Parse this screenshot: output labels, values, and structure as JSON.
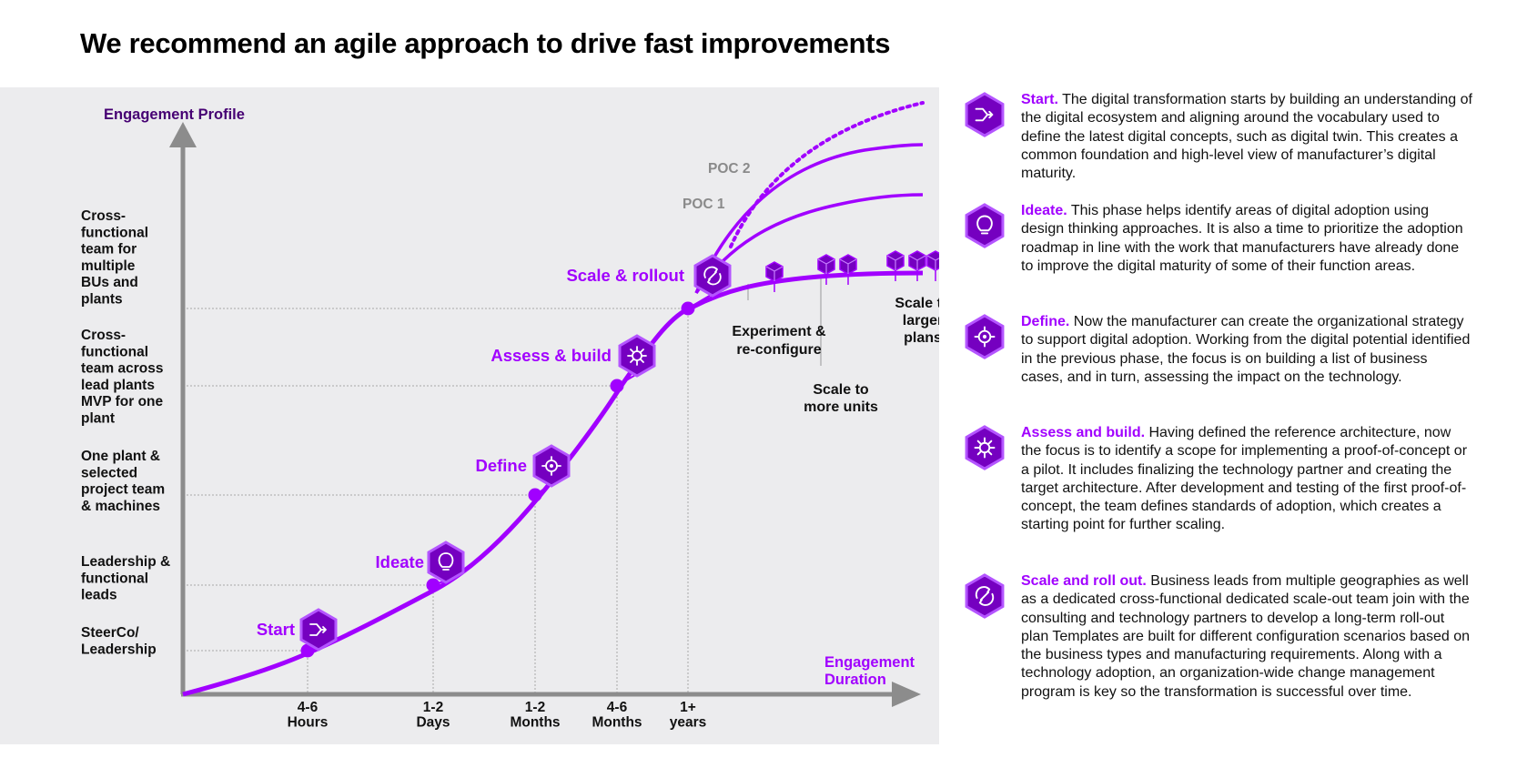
{
  "title": "We recommend an agile approach to drive fast improvements",
  "diagram": {
    "y_axis_title": "Engagement Profile",
    "x_axis_title": [
      "Engagement",
      "Duration"
    ],
    "y_levels": [
      {
        "lines": [
          "SteerCo/",
          "Leadership"
        ]
      },
      {
        "lines": [
          "Leadership &",
          "functional",
          "leads"
        ]
      },
      {
        "lines": [
          "One plant &",
          "selected",
          "project team",
          "& machines"
        ]
      },
      {
        "lines": [
          "Cross-",
          "functional",
          "team across",
          "lead plants",
          "MVP for one",
          "plant"
        ]
      },
      {
        "lines": [
          "Cross-",
          "functional",
          "team for",
          "multiple",
          "BUs and",
          "plants"
        ]
      }
    ],
    "x_ticks": [
      {
        "lines": [
          "4-6",
          "Hours"
        ]
      },
      {
        "lines": [
          "1-2",
          "Days"
        ]
      },
      {
        "lines": [
          "1-2",
          "Months"
        ]
      },
      {
        "lines": [
          "4-6",
          "Months"
        ]
      },
      {
        "lines": [
          "1+",
          "years"
        ]
      }
    ],
    "stages": [
      {
        "label": "Start",
        "icon": "arrows-merge-icon"
      },
      {
        "label": "Ideate",
        "icon": "lightbulb-icon"
      },
      {
        "label": "Define",
        "icon": "target-gear-icon"
      },
      {
        "label": "Assess & build",
        "icon": "gear-wrench-icon"
      },
      {
        "label": "Scale & rollout",
        "icon": "cycle-arrows-icon"
      }
    ],
    "poc_labels": [
      "POC 2",
      "POC 1"
    ],
    "branch_notes": {
      "experiment": [
        "Experiment &",
        "re-configure"
      ],
      "more_units": [
        "Scale to",
        "more units"
      ],
      "larger_plans": [
        "Scale to",
        "larger",
        "plans"
      ]
    },
    "colors": {
      "accent": "#a100ff",
      "icon_fill": "#7500c0",
      "icon_border": "#b455ff",
      "axis": "#8c8c8c",
      "panel": "#ececee"
    }
  },
  "descriptions": [
    {
      "heading": "Start.",
      "icon": "arrows-merge-icon",
      "body": "The digital transformation starts by building an understanding of the digital ecosystem and aligning around the vocabulary used to define the latest digital concepts, such as digital twin. This creates a common foundation and high-level view of manufacturer’s digital maturity."
    },
    {
      "heading": "Ideate.",
      "icon": "lightbulb-icon",
      "body": "This phase helps identify areas of digital adoption using design thinking approaches. It is also a time to prioritize the adoption roadmap in line with the work that manufacturers have already done to improve the digital maturity of some of their function areas."
    },
    {
      "heading": "Define.",
      "icon": "target-gear-icon",
      "body": "Now the manufacturer can create the organizational strategy to support digital adoption. Working from the digital potential identified in the previous phase, the focus is on building a list of business cases, and in turn, assessing the impact on the technology."
    },
    {
      "heading": "Assess and build.",
      "icon": "gear-wrench-icon",
      "body": "Having defined the reference architecture, now the focus is to identify a scope for implementing a proof-of-concept or a pilot. It includes finalizing the technology partner and creating the target architecture. After development and testing of the first proof-of-concept, the team defines standards of adoption, which creates a starting point for further scaling."
    },
    {
      "heading": "Scale and roll out.",
      "icon": "cycle-arrows-icon",
      "body": "Business leads from multiple geographies as well as a dedicated cross-functional dedicated scale-out team join with the consulting and technology partners to develop a long-term roll-out plan Templates are built for different configuration scenarios based on the business types and manufacturing requirements. Along with a technology adoption, an organization-wide change management program is key so the transformation is successful over time."
    }
  ]
}
